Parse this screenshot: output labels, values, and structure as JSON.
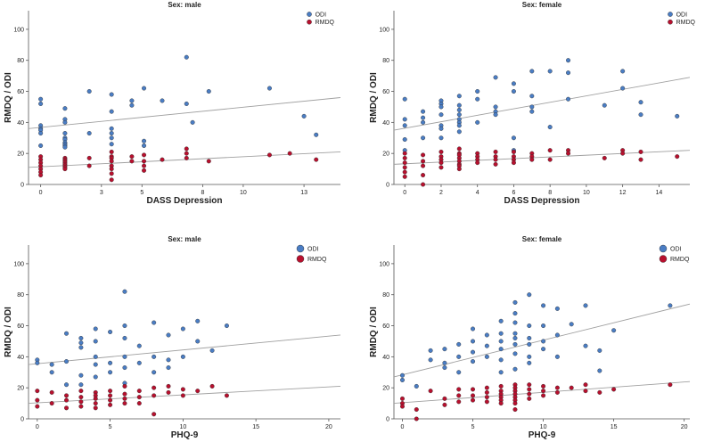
{
  "colors": {
    "odi": "#4a7dc4",
    "rmdq": "#b8102e",
    "line": "#a0a0a0",
    "axis": "#555555"
  },
  "chart_data": [
    {
      "type": "scatter",
      "title": "Sex: male",
      "xlabel": "DASS Depression",
      "ylabel": "RMDQ / ODI",
      "xlim": [
        -0.6,
        14.8
      ],
      "ylim": [
        0,
        112
      ],
      "xticks": [
        0,
        3,
        5,
        8,
        10,
        13
      ],
      "xtick_labels": [
        "0",
        "3",
        "5",
        "8",
        "10",
        "13"
      ],
      "yticks": [
        0,
        20,
        40,
        60,
        80,
        100
      ],
      "legend": [
        "ODI",
        "RMDQ"
      ],
      "legend_pos": "top-right",
      "series": [
        {
          "name": "ODI",
          "fit": [
            [
              -0.6,
              36
            ],
            [
              14.8,
              56
            ]
          ],
          "x": [
            0,
            0,
            0,
            0,
            0,
            0,
            0,
            1.2,
            1.2,
            1.2,
            1.2,
            1.2,
            1.2,
            1.2,
            1.2,
            1.2,
            1.2,
            2.4,
            2.4,
            3.5,
            3.5,
            3.5,
            3.5,
            3.5,
            3.5,
            4.5,
            4.5,
            5.1,
            5.1,
            5.1,
            6,
            7.2,
            7.2,
            7.5,
            8.3,
            11.3,
            13,
            13.6
          ],
          "y": [
            55,
            52,
            38,
            36,
            35,
            33,
            25,
            49,
            42,
            40,
            33,
            30,
            29,
            27,
            26,
            25,
            24,
            60,
            33,
            58,
            47,
            36,
            33,
            30,
            26,
            54,
            51,
            62,
            28,
            25,
            54,
            82,
            52,
            40,
            60,
            62,
            44,
            32
          ]
        },
        {
          "name": "RMDQ",
          "fit": [
            [
              -0.6,
              11
            ],
            [
              14.8,
              21
            ]
          ],
          "x": [
            0,
            0,
            0,
            0,
            0,
            0,
            0,
            1.2,
            1.2,
            1.2,
            1.2,
            1.2,
            1.2,
            1.2,
            1.2,
            2.4,
            2.4,
            3.5,
            3.5,
            3.5,
            3.5,
            3.5,
            3.5,
            3.5,
            3.5,
            4.5,
            4.5,
            5.1,
            5.1,
            5.1,
            5.1,
            6,
            7.2,
            7.2,
            7.2,
            8.3,
            11.3,
            12.3,
            13.6
          ],
          "y": [
            18,
            16,
            14,
            12,
            10,
            8,
            6,
            17,
            16,
            15,
            14,
            13,
            12,
            11,
            10,
            17,
            12,
            21,
            18,
            17,
            15,
            12,
            10,
            7,
            3,
            18,
            15,
            19,
            15,
            12,
            9,
            16,
            23,
            20,
            17,
            15,
            19,
            20,
            16
          ]
        }
      ]
    },
    {
      "type": "scatter",
      "title": "Sex: female",
      "xlabel": "DASS Depression",
      "ylabel": "RMDQ / ODI",
      "xlim": [
        -0.6,
        15.7
      ],
      "ylim": [
        0,
        112
      ],
      "xticks": [
        0,
        2,
        4,
        6,
        8,
        10,
        12,
        14
      ],
      "xtick_labels": [
        "0",
        "2",
        "4",
        "6",
        "8",
        "10",
        "12",
        "14"
      ],
      "yticks": [
        0,
        20,
        40,
        60,
        80,
        100
      ],
      "legend": [
        "ODI",
        "RMDQ"
      ],
      "legend_pos": "top-right",
      "series": [
        {
          "name": "ODI",
          "fit": [
            [
              -0.6,
              35
            ],
            [
              15.7,
              69
            ]
          ],
          "x": [
            0,
            0,
            0,
            0,
            0,
            1,
            1,
            1,
            1,
            2,
            2,
            2,
            2,
            2,
            2,
            2,
            3,
            3,
            3,
            3,
            3,
            3,
            3,
            3,
            4,
            4,
            4,
            5,
            5,
            5,
            5,
            6,
            6,
            6,
            6,
            7,
            7,
            7,
            7,
            8,
            8,
            9,
            9,
            9,
            11,
            12,
            12,
            13,
            13,
            15
          ],
          "y": [
            55,
            42,
            38,
            29,
            22,
            47,
            43,
            40,
            30,
            54,
            52,
            50,
            45,
            38,
            36,
            30,
            57,
            51,
            48,
            45,
            42,
            40,
            38,
            34,
            60,
            55,
            40,
            69,
            50,
            47,
            45,
            65,
            60,
            30,
            22,
            73,
            57,
            50,
            47,
            73,
            37,
            80,
            72,
            55,
            51,
            73,
            62,
            53,
            45,
            44
          ]
        },
        {
          "name": "RMDQ",
          "fit": [
            [
              -0.6,
              13
            ],
            [
              15.7,
              22
            ]
          ],
          "x": [
            0,
            0,
            0,
            0,
            0,
            0,
            1,
            1,
            1,
            1,
            1,
            2,
            2,
            2,
            2,
            2,
            3,
            3,
            3,
            3,
            3,
            3,
            3,
            3,
            4,
            4,
            4,
            4,
            5,
            5,
            5,
            5,
            6,
            6,
            6,
            6,
            7,
            7,
            7,
            8,
            8,
            9,
            9,
            11,
            12,
            12,
            13,
            13,
            15
          ],
          "y": [
            20,
            17,
            14,
            11,
            8,
            5,
            19,
            15,
            12,
            6,
            0,
            21,
            18,
            16,
            14,
            11,
            23,
            20,
            19,
            17,
            15,
            13,
            12,
            10,
            20,
            18,
            16,
            14,
            21,
            18,
            16,
            13,
            21,
            18,
            16,
            14,
            20,
            18,
            16,
            22,
            16,
            22,
            20,
            17,
            22,
            20,
            21,
            16,
            18
          ]
        }
      ]
    },
    {
      "type": "scatter",
      "title": "Sex: male",
      "xlabel": "PHQ-9",
      "ylabel": "RMDQ / ODI",
      "xlim": [
        -0.6,
        20.8
      ],
      "ylim": [
        0,
        112
      ],
      "xticks": [
        0,
        5,
        10,
        15,
        20
      ],
      "xtick_labels": [
        "0",
        "5",
        "10",
        "15",
        "20"
      ],
      "yticks": [
        0,
        20,
        40,
        60,
        80,
        100
      ],
      "legend": [
        "ODI",
        "RMDQ"
      ],
      "legend_pos": "top-right",
      "series": [
        {
          "name": "ODI",
          "fit": [
            [
              -0.6,
              35
            ],
            [
              20.8,
              54
            ]
          ],
          "x": [
            0,
            0,
            1,
            1,
            2,
            2,
            2,
            3,
            3,
            3,
            3,
            3,
            4,
            4,
            4,
            4,
            4,
            5,
            5,
            5,
            6,
            6,
            6,
            6,
            6,
            6,
            7,
            7,
            8,
            8,
            8,
            9,
            9,
            9,
            10,
            10,
            11,
            11,
            12,
            13
          ],
          "y": [
            38,
            36,
            35,
            30,
            55,
            37,
            22,
            52,
            49,
            46,
            28,
            22,
            58,
            50,
            40,
            35,
            27,
            56,
            36,
            30,
            82,
            60,
            52,
            40,
            33,
            23,
            47,
            36,
            62,
            40,
            30,
            54,
            38,
            33,
            58,
            40,
            63,
            50,
            44,
            60
          ]
        },
        {
          "name": "RMDQ",
          "fit": [
            [
              -0.6,
              10
            ],
            [
              20.8,
              21
            ]
          ],
          "x": [
            0,
            0,
            0,
            1,
            1,
            2,
            2,
            2,
            3,
            3,
            3,
            3,
            4,
            4,
            4,
            4,
            4,
            5,
            5,
            5,
            5,
            6,
            6,
            6,
            6,
            7,
            7,
            7,
            8,
            8,
            8,
            9,
            9,
            10,
            10,
            11,
            12,
            13
          ],
          "y": [
            18,
            12,
            8,
            17,
            10,
            15,
            12,
            7,
            18,
            14,
            11,
            8,
            17,
            15,
            13,
            10,
            7,
            18,
            15,
            12,
            9,
            21,
            16,
            13,
            10,
            18,
            14,
            10,
            20,
            15,
            3,
            21,
            17,
            19,
            15,
            18,
            21,
            15
          ]
        }
      ]
    },
    {
      "type": "scatter",
      "title": "Sex: female",
      "xlabel": "PHQ-9",
      "ylabel": "RMDQ / ODI",
      "xlim": [
        -0.6,
        20.4
      ],
      "ylim": [
        0,
        112
      ],
      "xticks": [
        0,
        5,
        10,
        15,
        20
      ],
      "xtick_labels": [
        "0",
        "5",
        "10",
        "15",
        "20"
      ],
      "yticks": [
        0,
        20,
        40,
        60,
        80,
        100
      ],
      "legend": [
        "ODI",
        "RMDQ"
      ],
      "legend_pos": "top-right",
      "series": [
        {
          "name": "ODI",
          "fit": [
            [
              -0.6,
              27
            ],
            [
              20.4,
              74
            ]
          ],
          "x": [
            0,
            0,
            1,
            2,
            2,
            3,
            3,
            3,
            4,
            4,
            4,
            5,
            5,
            5,
            5,
            6,
            6,
            6,
            7,
            7,
            7,
            7,
            7,
            7,
            8,
            8,
            8,
            8,
            8,
            8,
            8,
            8,
            9,
            9,
            9,
            9,
            9,
            9,
            10,
            10,
            10,
            10,
            11,
            11,
            11,
            12,
            13,
            13,
            14,
            14,
            15,
            19
          ],
          "y": [
            28,
            25,
            21,
            44,
            38,
            45,
            36,
            33,
            48,
            40,
            30,
            58,
            50,
            43,
            37,
            54,
            47,
            40,
            63,
            55,
            50,
            45,
            38,
            30,
            75,
            68,
            62,
            55,
            52,
            48,
            42,
            32,
            80,
            60,
            52,
            48,
            40,
            36,
            73,
            60,
            50,
            45,
            71,
            54,
            40,
            61,
            73,
            47,
            44,
            31,
            57,
            73
          ]
        },
        {
          "name": "RMDQ",
          "fit": [
            [
              -0.6,
              10
            ],
            [
              20.4,
              24
            ]
          ],
          "x": [
            0,
            0,
            0,
            1,
            1,
            2,
            3,
            3,
            4,
            4,
            4,
            5,
            5,
            5,
            6,
            6,
            6,
            6,
            7,
            7,
            7,
            7,
            7,
            7,
            8,
            8,
            8,
            8,
            8,
            8,
            8,
            8,
            9,
            9,
            9,
            9,
            10,
            10,
            10,
            11,
            11,
            12,
            13,
            13,
            14,
            15,
            19
          ],
          "y": [
            13,
            10,
            8,
            6,
            0,
            18,
            13,
            9,
            19,
            15,
            11,
            19,
            15,
            12,
            20,
            17,
            14,
            11,
            21,
            18,
            16,
            14,
            12,
            10,
            22,
            20,
            18,
            16,
            14,
            12,
            10,
            6,
            22,
            19,
            16,
            13,
            21,
            18,
            15,
            20,
            17,
            20,
            22,
            18,
            17,
            19,
            22
          ]
        }
      ]
    }
  ]
}
